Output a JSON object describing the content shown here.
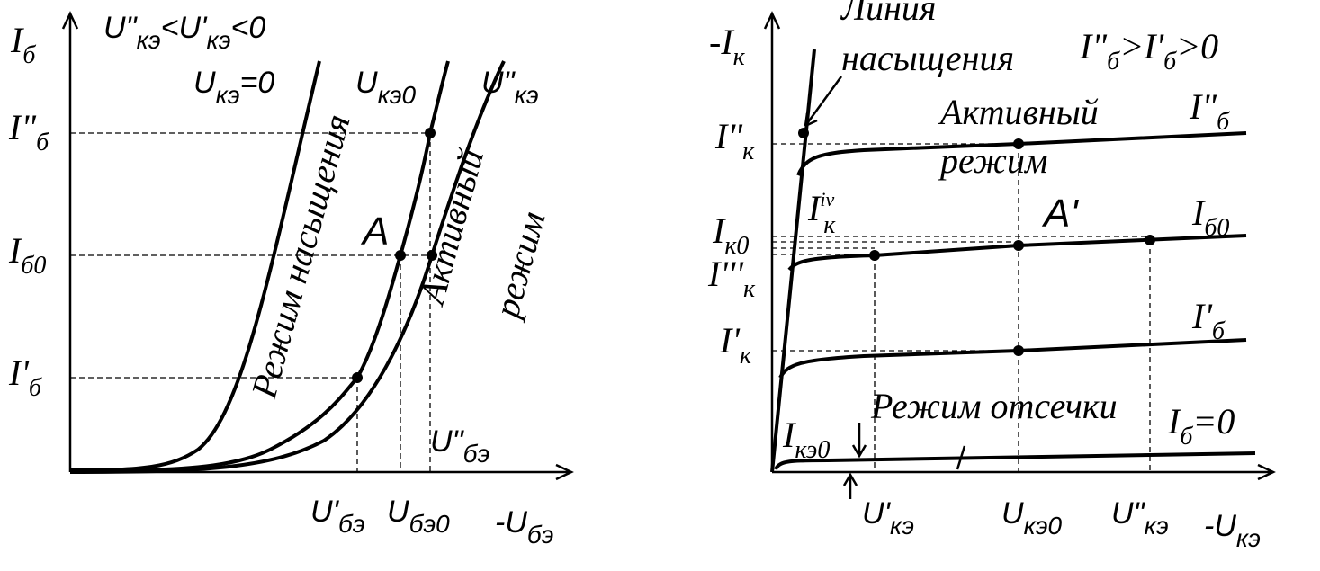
{
  "left": {
    "y_axis_label": {
      "parts": [
        "I",
        "б"
      ]
    },
    "condition": {
      "parts": [
        "U\"",
        "кэ",
        "<U'",
        "кэ",
        "<0"
      ]
    },
    "curve_saturation": {
      "parts": [
        "U",
        "кэ",
        "=0"
      ]
    },
    "curve_mid": {
      "parts": [
        "U",
        "кэ0"
      ]
    },
    "curve_high": {
      "parts": [
        "U\"",
        "кэ"
      ]
    },
    "tick_high": {
      "parts": [
        "I\"",
        "б"
      ]
    },
    "tick_mid": {
      "parts": [
        "I",
        "б0"
      ]
    },
    "tick_low": {
      "parts": [
        "I'",
        "б"
      ]
    },
    "point_label": "A",
    "saturation_region": "Режим насыщения",
    "active_region_1": "Активный",
    "active_region_2": "режим",
    "x_high": {
      "parts": [
        "U\"",
        "бэ"
      ]
    },
    "x_low": {
      "parts": [
        "U'",
        "бэ"
      ]
    },
    "x_mid": {
      "parts": [
        "U",
        "бэ0"
      ]
    },
    "x_axis_label": {
      "parts": [
        "-U",
        "бэ"
      ]
    }
  },
  "right": {
    "y_axis_label": {
      "parts": [
        "-I",
        "к"
      ]
    },
    "saturation_line_1": "Линия",
    "saturation_line_2": "насыщения",
    "condition": {
      "parts": [
        "I\"",
        "б",
        ">I'",
        "б",
        ">0"
      ]
    },
    "curve_high": {
      "parts": [
        "I\"",
        "б"
      ]
    },
    "active_region_1": "Активный",
    "active_region_2": "режим",
    "tick_high": {
      "parts": [
        "I\"",
        "к"
      ]
    },
    "tick_iv": {
      "parts": [
        "I",
        "к"
      ],
      "sup": "iv"
    },
    "tick_mid": {
      "parts": [
        "I",
        "к0"
      ]
    },
    "tick_iii": {
      "parts": [
        "I'''",
        "к"
      ]
    },
    "point_label": "A'",
    "curve_mid": {
      "parts": [
        "I",
        "б0"
      ]
    },
    "curve_low": {
      "parts": [
        "I'",
        "б"
      ]
    },
    "tick_low": {
      "parts": [
        "I'",
        "к"
      ]
    },
    "cutoff_region": "Режим отсечки",
    "curve_zero": {
      "parts": [
        "I",
        "б",
        "=0"
      ]
    },
    "leakage": {
      "parts": [
        "I",
        "кэ0"
      ]
    },
    "x_low": {
      "parts": [
        "U'",
        "кэ"
      ]
    },
    "x_mid": {
      "parts": [
        "U",
        "кэ0"
      ]
    },
    "x_high": {
      "parts": [
        "U\"",
        "кэ"
      ]
    },
    "x_axis_label": {
      "parts": [
        "-U",
        "кэ"
      ]
    }
  }
}
